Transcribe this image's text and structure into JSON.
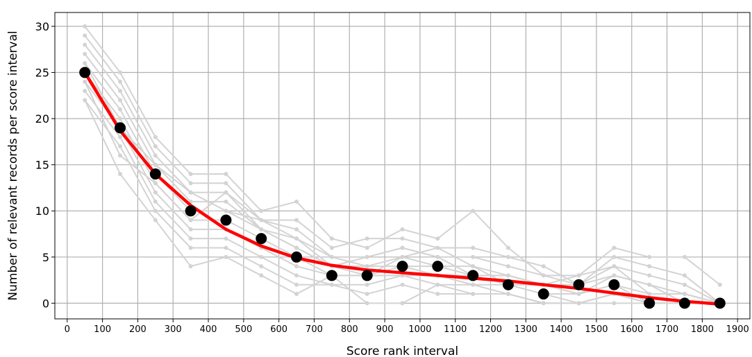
{
  "chart_data": {
    "type": "line",
    "xlabel": "Score rank interval",
    "ylabel": "Number of relevant records per score interval",
    "xlim": [
      -35,
      1935
    ],
    "ylim": [
      -1.7,
      31.5
    ],
    "x_ticks": [
      0,
      100,
      200,
      300,
      400,
      500,
      600,
      700,
      800,
      900,
      1000,
      1100,
      1200,
      1300,
      1400,
      1500,
      1600,
      1700,
      1800,
      1900
    ],
    "y_ticks": [
      0,
      5,
      10,
      15,
      20,
      25,
      30
    ],
    "grid": true,
    "legend": "none",
    "x": [
      50,
      150,
      250,
      350,
      450,
      550,
      650,
      750,
      850,
      950,
      1050,
      1150,
      1250,
      1350,
      1450,
      1550,
      1650,
      1750,
      1850
    ],
    "colors": {
      "background_series": "#d3d3d3",
      "points": "#000000",
      "trend": "#ff0000",
      "grid": "#b0b0b0"
    },
    "background_series": [
      {
        "values": [
          30,
          25,
          18,
          14,
          14,
          10,
          11,
          7,
          6,
          8,
          7,
          10,
          6,
          3,
          3,
          6,
          5,
          5,
          2
        ]
      },
      {
        "values": [
          29,
          24,
          17,
          13,
          13,
          9,
          9,
          6,
          7,
          7,
          6,
          6,
          5,
          4,
          2,
          5,
          4,
          3,
          0
        ]
      },
      {
        "values": [
          28,
          23,
          16,
          12,
          12,
          9,
          8,
          5,
          5,
          6,
          5,
          5,
          4,
          3,
          2,
          4,
          3,
          2,
          0
        ]
      },
      {
        "values": [
          27,
          22,
          15,
          11,
          11,
          8,
          7,
          5,
          4,
          5,
          4,
          4,
          3,
          2,
          1,
          3,
          2,
          1,
          0
        ]
      },
      {
        "values": [
          26,
          21,
          14,
          10,
          10,
          8,
          6,
          4,
          4,
          4,
          4,
          3,
          3,
          2,
          1,
          2,
          1,
          1,
          0
        ]
      },
      {
        "values": [
          25,
          20,
          13,
          9,
          9,
          7,
          5,
          3,
          3,
          4,
          3,
          3,
          2,
          1,
          1,
          2,
          0,
          0,
          0
        ]
      },
      {
        "values": [
          24,
          19,
          12,
          8,
          8,
          6,
          4,
          3,
          3,
          3,
          3,
          2,
          2,
          1,
          0,
          1,
          0,
          0,
          0
        ]
      },
      {
        "values": [
          23,
          18,
          11,
          7,
          7,
          5,
          3,
          2,
          2,
          3,
          2,
          2,
          1,
          0,
          0,
          1,
          0,
          0,
          0
        ]
      },
      {
        "values": [
          22,
          17,
          10,
          6,
          6,
          4,
          2,
          2,
          1,
          2,
          1,
          1,
          1,
          0,
          0,
          0,
          0,
          0,
          0
        ]
      },
      {
        "values": [
          22,
          14,
          9,
          4,
          5,
          3,
          1,
          3,
          0,
          0,
          2,
          1,
          1,
          0,
          0,
          1,
          0,
          0,
          0
        ]
      },
      {
        "values": [
          24,
          16,
          13,
          9,
          12,
          8,
          6,
          4,
          3,
          5,
          6,
          4,
          2,
          2,
          3,
          4,
          1,
          1,
          0
        ]
      },
      {
        "values": [
          26,
          19,
          15,
          12,
          10,
          9,
          7,
          4,
          5,
          6,
          5,
          3,
          3,
          2,
          2,
          3,
          2,
          0,
          0
        ]
      }
    ],
    "points": [
      25,
      19,
      14,
      10,
      9,
      7,
      5,
      3,
      3,
      4,
      4,
      3,
      2,
      1,
      2,
      2,
      0,
      0,
      0
    ],
    "trend": [
      25.0,
      18.7,
      14.0,
      10.6,
      8.0,
      6.2,
      4.9,
      4.1,
      3.6,
      3.3,
      3.0,
      2.7,
      2.4,
      2.0,
      1.6,
      1.1,
      0.6,
      0.2,
      -0.1
    ]
  }
}
